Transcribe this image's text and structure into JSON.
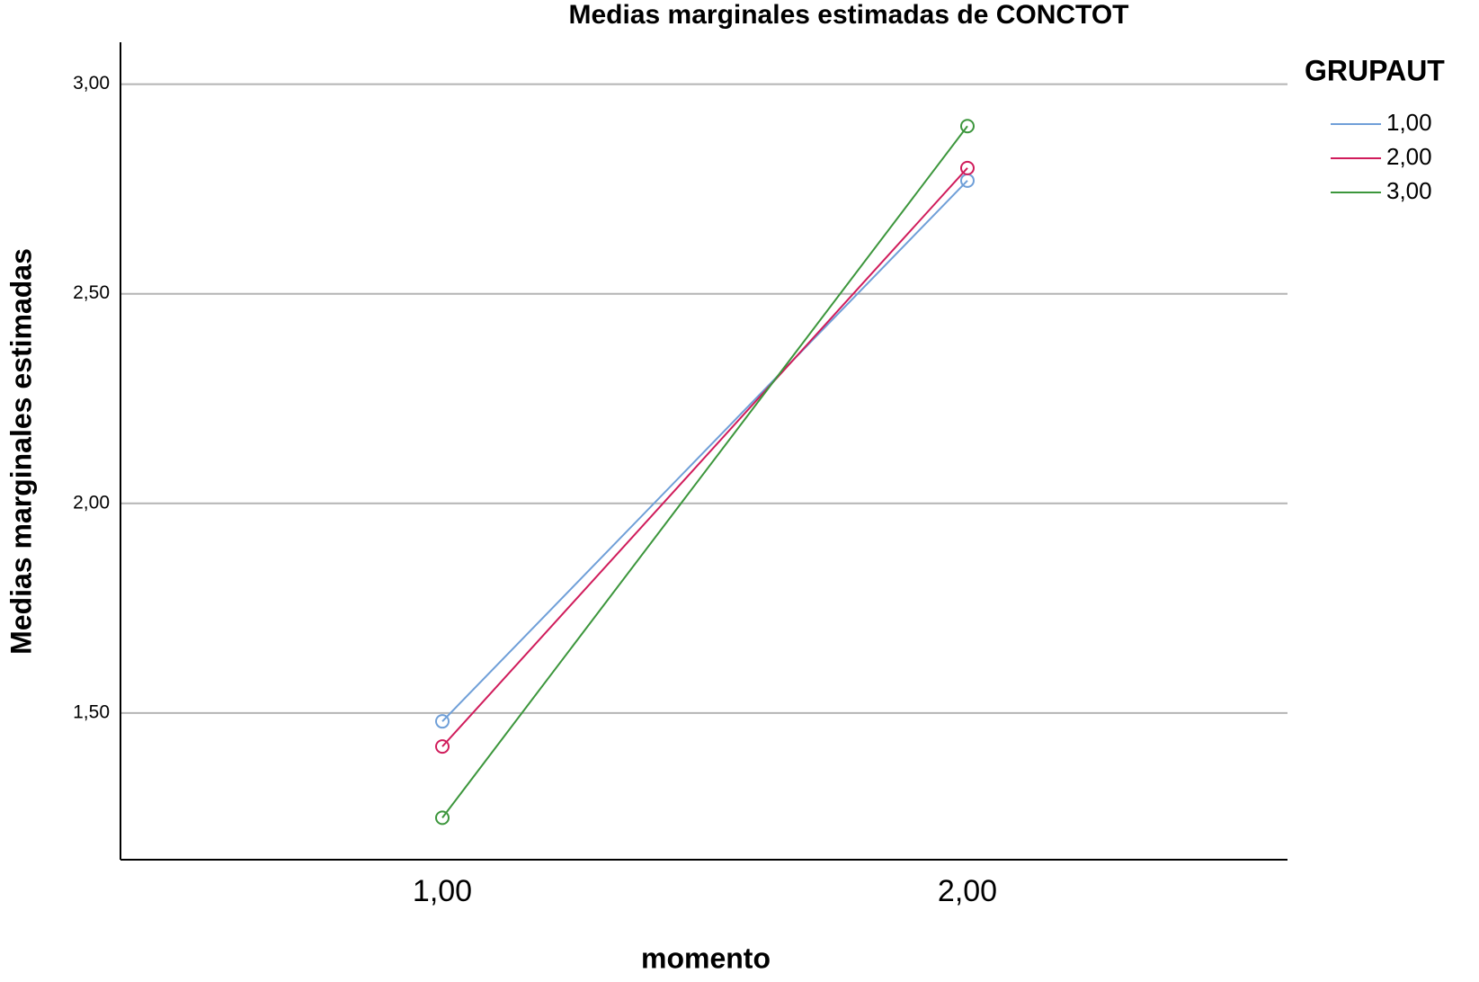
{
  "chart_data": {
    "type": "line",
    "title": "Medias marginales estimadas de CONCTOT",
    "x_label": "momento",
    "y_label": "Medias marginales estimadas",
    "categories": [
      "1,00",
      "2,00"
    ],
    "legend_title": "GRUPAUT",
    "legend_position": "right",
    "series": [
      {
        "name": "1,00",
        "color": "#6f9fd8",
        "values": [
          1.48,
          2.77
        ]
      },
      {
        "name": "2,00",
        "color": "#d01c5b",
        "values": [
          1.42,
          2.8
        ]
      },
      {
        "name": "3,00",
        "color": "#3c963c",
        "values": [
          1.25,
          2.9
        ]
      }
    ],
    "ylim": [
      1.15,
      3.1
    ],
    "yticks": [
      {
        "value": 1.5,
        "label": "1,50"
      },
      {
        "value": 2.0,
        "label": "2,00"
      },
      {
        "value": 2.5,
        "label": "2,50"
      },
      {
        "value": 3.0,
        "label": "3,00"
      }
    ],
    "grid": true
  }
}
